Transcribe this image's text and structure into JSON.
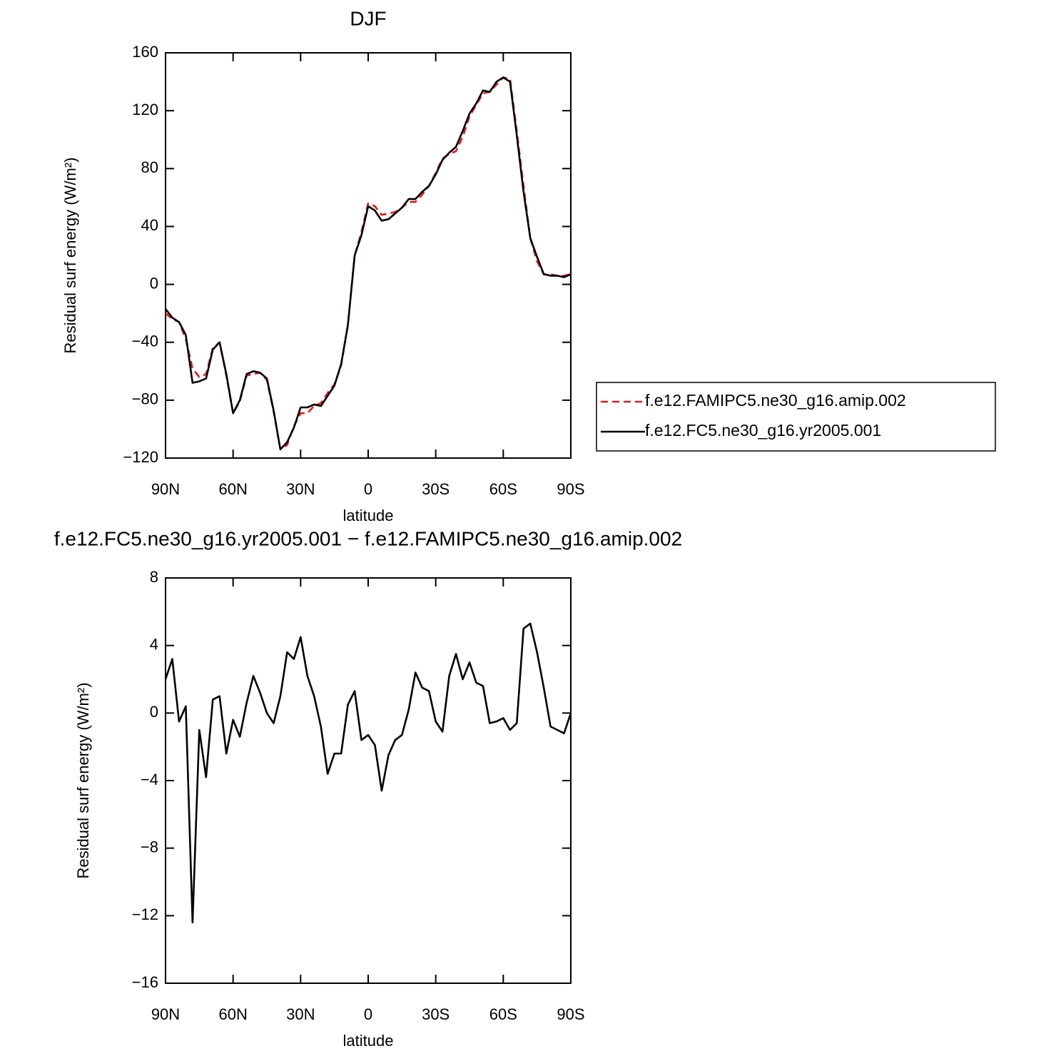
{
  "chart_data": [
    {
      "type": "line",
      "title": "DJF",
      "xlabel": "latitude",
      "ylabel": "Residual surf energy (W/m²)",
      "xlim": [
        90,
        -90
      ],
      "xticks": [
        {
          "value": 90,
          "label": "90N"
        },
        {
          "value": 60,
          "label": "60N"
        },
        {
          "value": 30,
          "label": "30N"
        },
        0,
        {
          "value": -30,
          "label": "30S"
        },
        {
          "value": -60,
          "label": "60S"
        },
        {
          "value": -90,
          "label": "90S"
        }
      ],
      "ylim": [
        -120,
        160
      ],
      "yticks": [
        -120,
        -80,
        -40,
        0,
        40,
        80,
        120,
        160
      ],
      "legend": "right",
      "x": [
        90,
        87,
        84,
        81,
        78,
        75,
        72,
        69,
        66,
        63,
        60,
        57,
        54,
        51,
        48,
        45,
        42,
        39,
        36,
        33,
        30,
        27,
        24,
        21,
        18,
        15,
        12,
        9,
        6,
        3,
        0,
        -3,
        -6,
        -9,
        -12,
        -15,
        -18,
        -21,
        -24,
        -27,
        -30,
        -33,
        -36,
        -39,
        -42,
        -45,
        -48,
        -51,
        -54,
        -57,
        -60,
        -63,
        -66,
        -69,
        -72,
        -75,
        -78,
        -81,
        -84,
        -87,
        -90
      ],
      "series": [
        {
          "name": "f.e12.FAMIPC5.ne30_g16.amip.002",
          "color": "#e41a1c",
          "style": "dashed",
          "values": [
            -20,
            -24,
            -26,
            -38,
            -58,
            -64,
            -62,
            -44,
            -40,
            -63,
            -89,
            -81,
            -63,
            -62,
            -61,
            -66,
            -88,
            -114,
            -111,
            -98,
            -89,
            -89,
            -84,
            -82,
            -75,
            -69,
            -56,
            -28,
            20,
            36,
            56,
            54,
            48,
            49,
            50,
            53,
            57,
            57,
            62,
            68,
            77,
            87,
            90,
            92,
            102,
            116,
            124,
            132,
            133,
            138,
            143,
            142,
            106,
            68,
            32,
            16,
            7,
            7,
            6,
            6,
            7
          ]
        },
        {
          "name": "f.e12.FC5.ne30_g16.yr2005.001",
          "color": "#000000",
          "style": "solid",
          "values": [
            -17,
            -23,
            -26,
            -35,
            -68,
            -67,
            -65,
            -45,
            -40,
            -62,
            -89,
            -80,
            -62,
            -60,
            -61,
            -65,
            -87,
            -114,
            -109,
            -99,
            -85,
            -85,
            -83,
            -84,
            -77,
            -70,
            -55,
            -28,
            20,
            34,
            54,
            51,
            44,
            45,
            49,
            53,
            59,
            59,
            64,
            68,
            76,
            86,
            91,
            95,
            106,
            118,
            125,
            134,
            133,
            140,
            143,
            140,
            103,
            64,
            32,
            19,
            7,
            6,
            6,
            5,
            7
          ]
        }
      ]
    },
    {
      "type": "line",
      "title": "f.e12.FC5.ne30_g16.yr2005.001 − f.e12.FAMIPC5.ne30_g16.amip.002",
      "xlabel": "latitude",
      "ylabel": "Residual surf energy (W/m²)",
      "xlim": [
        90,
        -90
      ],
      "xticks": [
        {
          "value": 90,
          "label": "90N"
        },
        {
          "value": 60,
          "label": "60N"
        },
        {
          "value": 30,
          "label": "30N"
        },
        0,
        {
          "value": -30,
          "label": "30S"
        },
        {
          "value": -60,
          "label": "60S"
        },
        {
          "value": -90,
          "label": "90S"
        }
      ],
      "ylim": [
        -16,
        8
      ],
      "yticks": [
        -16,
        -12,
        -8,
        -4,
        0,
        4,
        8
      ],
      "x": [
        90,
        87,
        84,
        81,
        78,
        75,
        72,
        69,
        66,
        63,
        60,
        57,
        54,
        51,
        48,
        45,
        42,
        39,
        36,
        33,
        30,
        27,
        24,
        21,
        18,
        15,
        12,
        9,
        6,
        3,
        0,
        -3,
        -6,
        -9,
        -12,
        -15,
        -18,
        -21,
        -24,
        -27,
        -30,
        -33,
        -36,
        -39,
        -42,
        -45,
        -48,
        -51,
        -54,
        -57,
        -60,
        -63,
        -66,
        -69,
        -72,
        -75,
        -78,
        -81,
        -84,
        -87,
        -90
      ],
      "series": [
        {
          "color": "#000000",
          "style": "solid",
          "values": [
            2,
            3.2,
            -0.5,
            0.4,
            -12.4,
            -1,
            -3.8,
            0.8,
            1,
            -2.4,
            -0.4,
            -1.4,
            0.6,
            2.2,
            1.2,
            0,
            -0.6,
            1,
            3.6,
            3.2,
            4.5,
            2.2,
            1,
            -0.8,
            -3.6,
            -2.4,
            -2.4,
            0.5,
            1.3,
            -1.6,
            -1.3,
            -1.9,
            -4.6,
            -2.5,
            -1.6,
            -1.3,
            0.2,
            2.4,
            1.5,
            1.3,
            -0.5,
            -1.1,
            2.2,
            3.5,
            2,
            3,
            1.8,
            1.6,
            -0.6,
            -0.5,
            -0.3,
            -1,
            -0.6,
            5,
            5.3,
            3.6,
            1.5,
            -0.8,
            -1,
            -1.2,
            0
          ]
        }
      ]
    }
  ]
}
